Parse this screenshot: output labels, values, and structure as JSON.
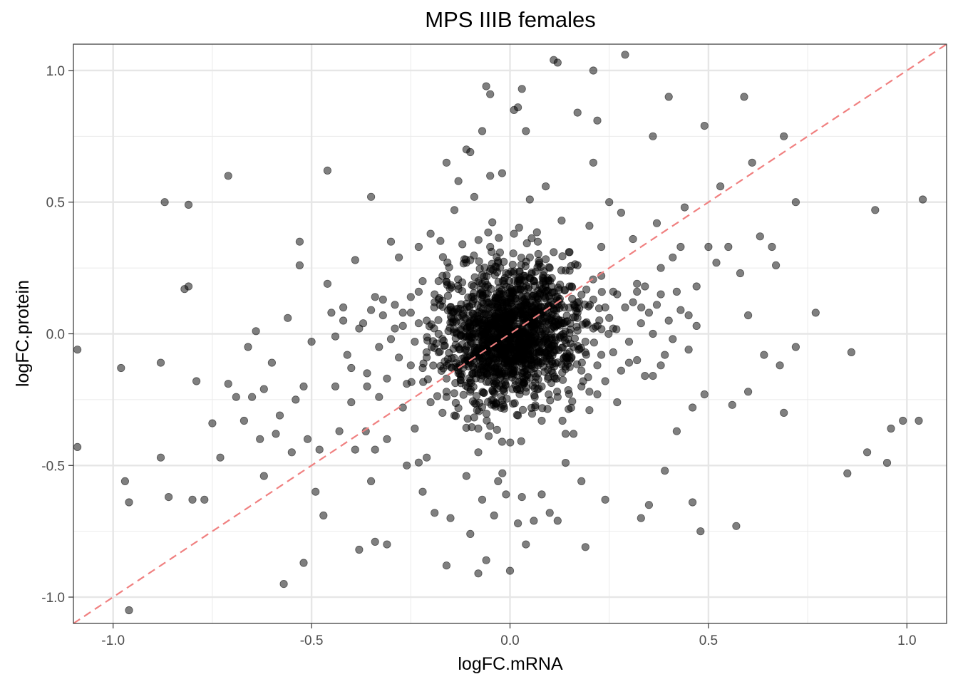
{
  "chart_data": {
    "type": "scatter",
    "title": "MPS IIIB females",
    "xlabel": "logFC.mRNA",
    "ylabel": "logFC.protein",
    "xlim": [
      -1.1,
      1.1
    ],
    "ylim": [
      -1.1,
      1.1
    ],
    "x_ticks": [
      -1.0,
      -0.5,
      0.0,
      0.5,
      1.0
    ],
    "x_tick_labels": [
      "-1.0",
      "-0.5",
      "0.0",
      "0.5",
      "1.0"
    ],
    "y_ticks": [
      -1.0,
      -0.5,
      0.0,
      0.5,
      1.0
    ],
    "y_tick_labels": [
      "-1.0",
      "-0.5",
      "0.0",
      "0.5",
      "1.0"
    ],
    "grid": true,
    "reference_line": {
      "type": "identity",
      "slope": 1,
      "intercept": 0,
      "color": "#f08080",
      "style": "dashed"
    },
    "point_color": "#000000",
    "point_opacity": 0.5,
    "points": [
      [
        -1.09,
        -0.06
      ],
      [
        -1.09,
        -0.43
      ],
      [
        -0.98,
        -0.13
      ],
      [
        -0.97,
        -0.56
      ],
      [
        -0.96,
        -0.64
      ],
      [
        -0.96,
        -1.05
      ],
      [
        -0.88,
        -0.11
      ],
      [
        -0.88,
        -0.47
      ],
      [
        -0.87,
        0.5
      ],
      [
        -0.86,
        -0.62
      ],
      [
        -0.82,
        0.17
      ],
      [
        -0.81,
        0.18
      ],
      [
        -0.81,
        0.49
      ],
      [
        -0.8,
        -0.63
      ],
      [
        -0.79,
        -0.18
      ],
      [
        -0.77,
        -0.63
      ],
      [
        -0.75,
        -0.34
      ],
      [
        -0.73,
        -0.47
      ],
      [
        -0.71,
        0.6
      ],
      [
        -0.71,
        -0.19
      ],
      [
        -0.69,
        -0.24
      ],
      [
        -0.67,
        -0.33
      ],
      [
        -0.66,
        -0.05
      ],
      [
        -0.65,
        -0.24
      ],
      [
        -0.64,
        0.01
      ],
      [
        -0.63,
        -0.4
      ],
      [
        -0.62,
        -0.21
      ],
      [
        -0.62,
        -0.54
      ],
      [
        -0.6,
        -0.11
      ],
      [
        -0.59,
        -0.38
      ],
      [
        -0.58,
        -0.31
      ],
      [
        -0.57,
        -0.95
      ],
      [
        -0.56,
        0.06
      ],
      [
        -0.55,
        -0.45
      ],
      [
        -0.54,
        -0.25
      ],
      [
        -0.53,
        0.26
      ],
      [
        -0.53,
        0.35
      ],
      [
        -0.52,
        -0.2
      ],
      [
        -0.52,
        -0.87
      ],
      [
        -0.51,
        -0.4
      ],
      [
        -0.5,
        -0.03
      ],
      [
        -0.49,
        -0.6
      ],
      [
        -0.48,
        -0.44
      ],
      [
        -0.47,
        -0.69
      ],
      [
        -0.46,
        0.19
      ],
      [
        -0.46,
        0.62
      ],
      [
        -0.45,
        0.08
      ],
      [
        -0.44,
        -0.2
      ],
      [
        -0.43,
        -0.37
      ],
      [
        -0.42,
        0.1
      ],
      [
        -0.41,
        -0.08
      ],
      [
        -0.4,
        -0.26
      ],
      [
        -0.39,
        0.28
      ],
      [
        -0.39,
        -0.44
      ],
      [
        -0.38,
        -0.82
      ],
      [
        -0.37,
        0.04
      ],
      [
        -0.36,
        -0.15
      ],
      [
        -0.35,
        0.52
      ],
      [
        -0.35,
        -0.56
      ],
      [
        -0.34,
        -0.44
      ],
      [
        -0.34,
        -0.79
      ],
      [
        -0.33,
        -0.24
      ],
      [
        -0.32,
        0.13
      ],
      [
        -0.31,
        -0.4
      ],
      [
        -0.31,
        -0.8
      ],
      [
        -0.3,
        0.35
      ],
      [
        -0.29,
        0.02
      ],
      [
        -0.28,
        0.29
      ],
      [
        -0.27,
        -0.28
      ],
      [
        -0.26,
        -0.5
      ],
      [
        -0.25,
        0.14
      ],
      [
        -0.24,
        -0.36
      ],
      [
        -0.23,
        0.33
      ],
      [
        -0.22,
        -0.6
      ],
      [
        -0.21,
        -0.47
      ],
      [
        -0.2,
        0.38
      ],
      [
        -0.19,
        -0.68
      ],
      [
        -0.18,
        0.2
      ],
      [
        -0.17,
        -0.3
      ],
      [
        -0.16,
        0.65
      ],
      [
        -0.16,
        -0.88
      ],
      [
        -0.15,
        -0.7
      ],
      [
        -0.14,
        0.47
      ],
      [
        -0.13,
        0.58
      ],
      [
        -0.13,
        -0.15
      ],
      [
        -0.12,
        0.34
      ],
      [
        -0.11,
        0.7
      ],
      [
        -0.11,
        -0.54
      ],
      [
        -0.1,
        0.69
      ],
      [
        -0.1,
        -0.76
      ],
      [
        -0.09,
        0.52
      ],
      [
        -0.08,
        -0.45
      ],
      [
        -0.08,
        -0.91
      ],
      [
        -0.07,
        0.77
      ],
      [
        -0.07,
        -0.63
      ],
      [
        -0.06,
        0.94
      ],
      [
        -0.06,
        -0.86
      ],
      [
        -0.05,
        0.91
      ],
      [
        -0.05,
        0.6
      ],
      [
        -0.04,
        -0.69
      ],
      [
        -0.03,
        0.27
      ],
      [
        -0.03,
        -0.56
      ],
      [
        -0.02,
        0.61
      ],
      [
        -0.01,
        -0.61
      ],
      [
        0.0,
        -0.9
      ],
      [
        0.01,
        0.85
      ],
      [
        0.02,
        -0.72
      ],
      [
        0.02,
        0.86
      ],
      [
        0.03,
        0.93
      ],
      [
        0.03,
        -0.62
      ],
      [
        0.04,
        0.77
      ],
      [
        0.04,
        -0.8
      ],
      [
        0.05,
        0.51
      ],
      [
        0.06,
        -0.71
      ],
      [
        0.07,
        0.35
      ],
      [
        0.08,
        -0.61
      ],
      [
        0.09,
        0.56
      ],
      [
        0.1,
        -0.68
      ],
      [
        0.1,
        0.25
      ],
      [
        0.11,
        1.04
      ],
      [
        0.12,
        1.03
      ],
      [
        0.12,
        -0.71
      ],
      [
        0.13,
        0.43
      ],
      [
        0.14,
        -0.49
      ],
      [
        0.15,
        0.31
      ],
      [
        0.16,
        -0.38
      ],
      [
        0.17,
        0.06
      ],
      [
        0.17,
        0.84
      ],
      [
        0.18,
        -0.56
      ],
      [
        0.19,
        -0.81
      ],
      [
        0.2,
        0.41
      ],
      [
        0.21,
        1.0
      ],
      [
        0.21,
        0.65
      ],
      [
        0.22,
        0.81
      ],
      [
        0.22,
        -0.23
      ],
      [
        0.23,
        0.33
      ],
      [
        0.24,
        -0.63
      ],
      [
        0.25,
        0.5
      ],
      [
        0.26,
        0.16
      ],
      [
        0.27,
        -0.26
      ],
      [
        0.28,
        0.46
      ],
      [
        0.29,
        1.06
      ],
      [
        0.3,
        -0.11
      ],
      [
        0.31,
        0.36
      ],
      [
        0.32,
        0.19
      ],
      [
        0.33,
        -0.7
      ],
      [
        0.34,
        0.18
      ],
      [
        0.35,
        -0.65
      ],
      [
        0.36,
        0.75
      ],
      [
        0.36,
        -0.16
      ],
      [
        0.37,
        0.42
      ],
      [
        0.38,
        0.25
      ],
      [
        0.38,
        0.15
      ],
      [
        0.39,
        -0.52
      ],
      [
        0.4,
        0.9
      ],
      [
        0.41,
        0.29
      ],
      [
        0.42,
        -0.37
      ],
      [
        0.43,
        0.33
      ],
      [
        0.44,
        0.48
      ],
      [
        0.45,
        0.07
      ],
      [
        0.46,
        -0.64
      ],
      [
        0.46,
        -0.28
      ],
      [
        0.47,
        0.18
      ],
      [
        0.48,
        -0.75
      ],
      [
        0.49,
        0.79
      ],
      [
        0.49,
        -0.23
      ],
      [
        0.5,
        0.33
      ],
      [
        0.52,
        0.27
      ],
      [
        0.53,
        0.56
      ],
      [
        0.55,
        0.33
      ],
      [
        0.56,
        -0.27
      ],
      [
        0.57,
        -0.73
      ],
      [
        0.58,
        0.23
      ],
      [
        0.59,
        0.9
      ],
      [
        0.6,
        0.07
      ],
      [
        0.6,
        -0.22
      ],
      [
        0.61,
        0.65
      ],
      [
        0.63,
        0.37
      ],
      [
        0.64,
        -0.08
      ],
      [
        0.66,
        0.33
      ],
      [
        0.67,
        0.26
      ],
      [
        0.68,
        -0.12
      ],
      [
        0.69,
        0.75
      ],
      [
        0.69,
        -0.3
      ],
      [
        0.72,
        0.5
      ],
      [
        0.72,
        -0.05
      ],
      [
        0.77,
        0.08
      ],
      [
        0.85,
        -0.53
      ],
      [
        0.86,
        -0.07
      ],
      [
        0.9,
        -0.45
      ],
      [
        0.92,
        0.47
      ],
      [
        0.95,
        -0.49
      ],
      [
        0.96,
        -0.36
      ],
      [
        0.99,
        -0.33
      ],
      [
        1.03,
        -0.33
      ],
      [
        1.04,
        0.51
      ],
      [
        -0.44,
        -0.01
      ],
      [
        -0.42,
        0.05
      ],
      [
        -0.4,
        -0.13
      ],
      [
        -0.38,
        0.02
      ],
      [
        -0.36,
        -0.2
      ],
      [
        -0.35,
        0.09
      ],
      [
        -0.33,
        -0.05
      ],
      [
        -0.32,
        0.07
      ],
      [
        -0.31,
        -0.17
      ],
      [
        -0.29,
        0.11
      ],
      [
        -0.28,
        -0.09
      ],
      [
        -0.27,
        0.03
      ],
      [
        -0.26,
        -0.19
      ],
      [
        -0.25,
        0.08
      ],
      [
        -0.24,
        -0.03
      ],
      [
        -0.23,
        0.16
      ],
      [
        -0.22,
        -0.13
      ],
      [
        -0.21,
        0.05
      ],
      [
        -0.2,
        -0.26
      ],
      [
        -0.19,
        0.12
      ],
      [
        -0.18,
        -0.07
      ],
      [
        -0.17,
        0.22
      ],
      [
        -0.16,
        -0.17
      ],
      [
        -0.15,
        0.09
      ],
      [
        -0.14,
        -0.31
      ],
      [
        -0.13,
        0.17
      ],
      [
        -0.12,
        -0.04
      ],
      [
        -0.11,
        0.27
      ],
      [
        -0.1,
        -0.22
      ],
      [
        -0.09,
        0.06
      ],
      [
        -0.08,
        -0.36
      ],
      [
        -0.07,
        0.19
      ],
      [
        -0.06,
        -0.11
      ],
      [
        -0.05,
        0.33
      ],
      [
        -0.04,
        -0.27
      ],
      [
        -0.03,
        0.1
      ],
      [
        -0.02,
        -0.41
      ],
      [
        -0.01,
        0.23
      ],
      [
        0.0,
        -0.06
      ],
      [
        0.01,
        0.38
      ],
      [
        0.02,
        -0.31
      ],
      [
        0.03,
        0.14
      ],
      [
        0.04,
        -0.22
      ],
      [
        0.05,
        0.29
      ],
      [
        0.06,
        -0.15
      ],
      [
        0.07,
        0.07
      ],
      [
        0.08,
        -0.33
      ],
      [
        0.09,
        0.2
      ],
      [
        0.1,
        -0.09
      ],
      [
        0.11,
        0.31
      ],
      [
        0.12,
        -0.24
      ],
      [
        0.13,
        0.11
      ],
      [
        0.14,
        -0.38
      ],
      [
        0.15,
        0.18
      ],
      [
        0.16,
        -0.05
      ],
      [
        0.17,
        0.26
      ],
      [
        0.18,
        -0.2
      ],
      [
        0.19,
        0.04
      ],
      [
        0.2,
        -0.29
      ],
      [
        0.21,
        0.13
      ],
      [
        0.22,
        -0.12
      ],
      [
        0.23,
        0.22
      ],
      [
        0.24,
        -0.18
      ],
      [
        0.25,
        0.06
      ],
      [
        0.26,
        -0.07
      ],
      [
        0.27,
        0.15
      ],
      [
        0.28,
        -0.14
      ],
      [
        0.29,
        0.1
      ],
      [
        0.3,
        -0.03
      ],
      [
        0.31,
        0.12
      ],
      [
        0.32,
        -0.1
      ],
      [
        0.33,
        0.04
      ],
      [
        0.34,
        -0.16
      ],
      [
        0.35,
        0.08
      ],
      [
        0.36,
        0.0
      ],
      [
        0.37,
        0.11
      ],
      [
        0.39,
        -0.08
      ],
      [
        0.4,
        0.05
      ],
      [
        0.41,
        -0.02
      ],
      [
        0.43,
        0.09
      ],
      [
        0.45,
        -0.06
      ],
      [
        0.47,
        0.03
      ],
      [
        -0.27,
        0.08
      ],
      [
        -0.25,
        -0.12
      ],
      [
        -0.23,
        0.04
      ],
      [
        -0.21,
        -0.09
      ],
      [
        -0.19,
        0.15
      ],
      [
        -0.17,
        -0.02
      ],
      [
        -0.15,
        0.1
      ],
      [
        -0.13,
        -0.14
      ],
      [
        -0.11,
        0.02
      ],
      [
        -0.09,
        -0.08
      ],
      [
        -0.07,
        0.12
      ],
      [
        -0.05,
        -0.04
      ],
      [
        -0.03,
        0.06
      ],
      [
        -0.01,
        -0.1
      ],
      [
        0.01,
        0.03
      ],
      [
        0.03,
        -0.05
      ],
      [
        0.05,
        0.09
      ],
      [
        0.07,
        -0.12
      ],
      [
        0.09,
        0.01
      ],
      [
        0.11,
        -0.07
      ],
      [
        0.13,
        0.05
      ],
      [
        0.15,
        -0.1
      ],
      [
        0.17,
        0.08
      ],
      [
        0.19,
        -0.03
      ],
      [
        0.21,
        0.02
      ],
      [
        0.23,
        -0.08
      ],
      [
        -0.18,
        0.0
      ],
      [
        -0.12,
        0.07
      ],
      [
        -0.06,
        -0.15
      ],
      [
        0.0,
        0.16
      ],
      [
        0.06,
        0.0
      ],
      [
        0.12,
        0.14
      ],
      [
        0.18,
        -0.14
      ],
      [
        0.24,
        0.1
      ],
      [
        -0.22,
        0.2
      ],
      [
        -0.16,
        -0.24
      ],
      [
        -0.1,
        0.28
      ],
      [
        -0.04,
        -0.18
      ],
      [
        0.02,
        0.2
      ],
      [
        0.08,
        -0.2
      ],
      [
        0.14,
        0.24
      ],
      [
        0.2,
        -0.22
      ],
      [
        0.26,
        0.02
      ],
      [
        0.32,
        0.16
      ],
      [
        -0.3,
        -0.02
      ],
      [
        -0.34,
        0.14
      ],
      [
        0.38,
        -0.12
      ],
      [
        0.42,
        0.16
      ]
    ]
  }
}
